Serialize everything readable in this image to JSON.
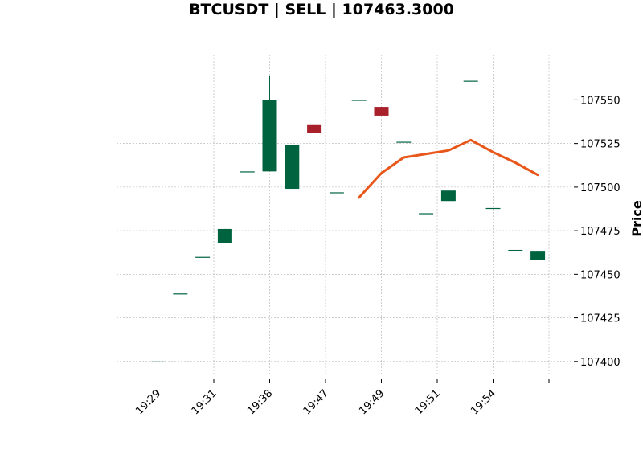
{
  "chart_data": {
    "type": "candlestick",
    "title": "BTCUSDT | SELL | 107463.3000",
    "ylabel": "Price",
    "xlabel": "",
    "x_ticks": [
      "19:29",
      "19:31",
      "19:38",
      "19:47",
      "19:49",
      "19:51",
      "19:54",
      ""
    ],
    "y_ticks": [
      107400,
      107425,
      107450,
      107475,
      107500,
      107525,
      107550
    ],
    "ylim": [
      107393,
      107576
    ],
    "grid": true,
    "colors": {
      "up": "#006340",
      "down": "#a8202a",
      "line": "#e8561a",
      "grid": "#b0b0b0"
    },
    "candles": [
      {
        "open": 107400,
        "high": 107400,
        "low": 107400,
        "close": 107400
      },
      {
        "open": 107439,
        "high": 107439,
        "low": 107439,
        "close": 107439
      },
      {
        "open": 107460,
        "high": 107460,
        "low": 107460,
        "close": 107460
      },
      {
        "open": 107468,
        "high": 107476,
        "low": 107468,
        "close": 107476
      },
      {
        "open": 107509,
        "high": 107509,
        "low": 107509,
        "close": 107509
      },
      {
        "open": 107509,
        "high": 107564,
        "low": 107509,
        "close": 107550
      },
      {
        "open": 107499,
        "high": 107524,
        "low": 107499,
        "close": 107524
      },
      {
        "open": 107536,
        "high": 107536,
        "low": 107531,
        "close": 107531
      },
      {
        "open": 107497,
        "high": 107497,
        "low": 107497,
        "close": 107497
      },
      {
        "open": 107550,
        "high": 107550,
        "low": 107550,
        "close": 107550
      },
      {
        "open": 107546,
        "high": 107546,
        "low": 107541,
        "close": 107541
      },
      {
        "open": 107526,
        "high": 107526,
        "low": 107526,
        "close": 107526
      },
      {
        "open": 107485,
        "high": 107485,
        "low": 107485,
        "close": 107485
      },
      {
        "open": 107492,
        "high": 107498,
        "low": 107492,
        "close": 107498
      },
      {
        "open": 107561,
        "high": 107561,
        "low": 107561,
        "close": 107561
      },
      {
        "open": 107488,
        "high": 107488,
        "low": 107488,
        "close": 107488
      },
      {
        "open": 107464,
        "high": 107464,
        "low": 107464,
        "close": 107464
      },
      {
        "open": 107458,
        "high": 107463,
        "low": 107458,
        "close": 107463
      }
    ],
    "line_series": {
      "start_index": 9,
      "values": [
        107494,
        107508,
        107517,
        107519,
        107521,
        107527,
        107520,
        107514,
        107507
      ]
    }
  }
}
